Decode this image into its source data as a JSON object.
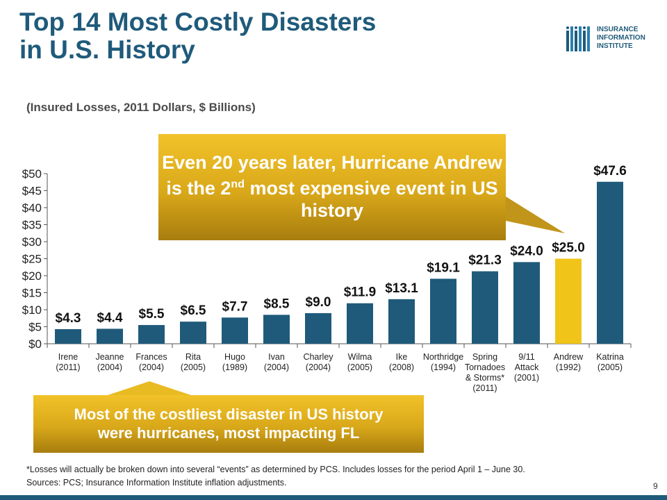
{
  "header": {
    "title_line1": "Top 14 Most Costly Disasters",
    "title_line2": "in U.S. History",
    "subtitle": "(Insured Losses, 2011 Dollars, $ Billions)"
  },
  "logo": {
    "line1": "INSURANCE",
    "line2": "INFORMATION",
    "line3": "INSTITUTE",
    "icon": "iii-bars-logo-icon"
  },
  "callouts": {
    "top_before": "Even 20 years later, Hurricane Andrew is the 2",
    "top_superscript": "nd",
    "top_after": " most expensive event in US history",
    "bottom_line1": "Most of the costliest disaster in US history",
    "bottom_line2": "were hurricanes, most impacting FL"
  },
  "footnote": {
    "line1": "*Losses will actually be broken down into several “events” as determined by PCS.  Includes losses for the period April 1 – June 30.",
    "line2": "Sources: PCS; Insurance Information Institute inflation adjustments."
  },
  "page_number": "9",
  "colors": {
    "bar": "#1f5a7a",
    "highlight_bar": "#f0c419",
    "title": "#1f5a7a",
    "callout": "#e0b11e"
  },
  "chart_data": {
    "type": "bar",
    "categories": [
      [
        "Irene",
        "(2011)"
      ],
      [
        "Jeanne",
        "(2004)"
      ],
      [
        "Frances",
        "(2004)"
      ],
      [
        "Rita",
        "(2005)"
      ],
      [
        "Hugo",
        "(1989)"
      ],
      [
        "Ivan",
        "(2004)"
      ],
      [
        "Charley",
        "(2004)"
      ],
      [
        "Wilma",
        "(2005)"
      ],
      [
        "Ike",
        "(2008)"
      ],
      [
        "Northridge",
        "(1994)"
      ],
      [
        "Spring",
        "Tornadoes",
        "& Storms*",
        "(2011)"
      ],
      [
        "9/11",
        "Attack",
        "(2001)"
      ],
      [
        "Andrew",
        "(1992)"
      ],
      [
        "Katrina",
        "(2005)"
      ]
    ],
    "values": [
      4.3,
      4.4,
      5.5,
      6.5,
      7.7,
      8.5,
      9.0,
      11.9,
      13.1,
      19.1,
      21.3,
      24.0,
      25.0,
      47.6
    ],
    "data_labels": [
      "$4.3",
      "$4.4",
      "$5.5",
      "$6.5",
      "$7.7",
      "$8.5",
      "$9.0",
      "$11.9",
      "$13.1",
      "$19.1",
      "$21.3",
      "$24.0",
      "$25.0",
      "$47.6"
    ],
    "highlight_index": 12,
    "ylim": [
      0,
      50
    ],
    "yticks": [
      "$0",
      "$5",
      "$10",
      "$15",
      "$20",
      "$25",
      "$30",
      "$35",
      "$40",
      "$45",
      "$50"
    ],
    "grid": false,
    "legend": "none"
  }
}
